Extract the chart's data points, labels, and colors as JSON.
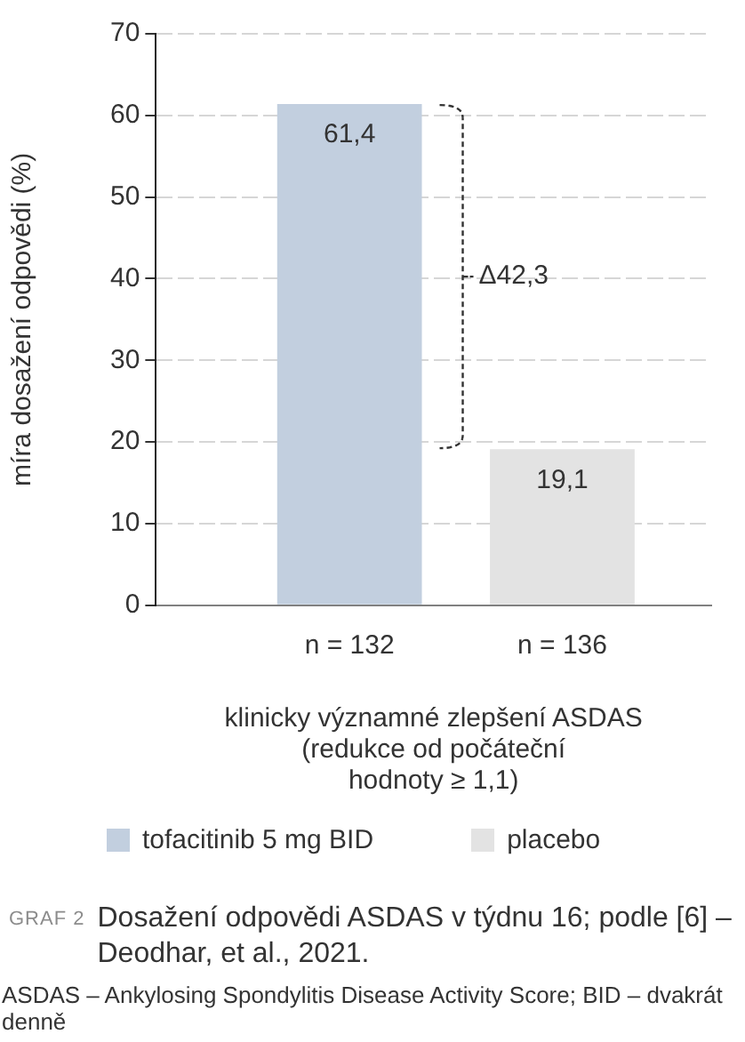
{
  "chart_data": {
    "type": "bar",
    "title": "GRAF 2",
    "subtitle": "Dosažení odpovědi ASDAS v týdnu 16; podle [6] – Deodhar, et al., 2021.",
    "xlabel": "klinicky významné zlepšení ASDAS\n(redukce od počáteční\nhodnoty ≥ 1,1)",
    "ylabel": "míra dosažení odpovědi (%)",
    "categories": [
      "n = 132",
      "n = 136"
    ],
    "series": [
      {
        "name": "tofacitinib 5 mg BID",
        "color": "#c2cfdf",
        "values": [
          61.4,
          null
        ],
        "value_labels": [
          "61,4",
          null
        ]
      },
      {
        "name": "placebo",
        "color": "#e3e3e3",
        "values": [
          null,
          19.1
        ],
        "value_labels": [
          null,
          "19,1"
        ]
      }
    ],
    "ylim": [
      0,
      70
    ],
    "yticks": [
      0,
      10,
      20,
      30,
      40,
      50,
      60,
      70
    ],
    "grid": "y",
    "legend": "bottom",
    "annotations": [
      "Δ42,3",
      "ASDAS – Ankylosing Spondylitis Disease Activity Score; BID – dvakrát denně"
    ]
  }
}
